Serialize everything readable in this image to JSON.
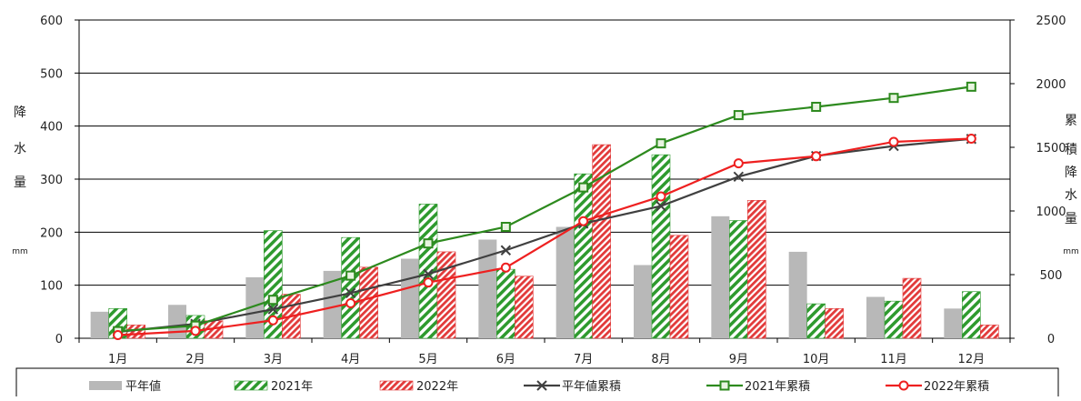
{
  "colors": {
    "avg": "#b8b8b8",
    "y2021": "#2e9a2e",
    "y2022": "#e23a3a",
    "avg_line": "#404040",
    "cum2021": "#2d8a1e",
    "cum2022": "#ee2020"
  },
  "chart_data": {
    "type": "bar",
    "categories": [
      "1月",
      "2月",
      "3月",
      "4月",
      "5月",
      "6月",
      "7月",
      "8月",
      "9月",
      "10月",
      "11月",
      "12月"
    ],
    "y_left": {
      "label_chars": [
        "降",
        "水",
        "量"
      ],
      "unit": "mm",
      "ylim": [
        0,
        600
      ],
      "ticks": [
        "0",
        "100",
        "200",
        "300",
        "400",
        "500",
        "600"
      ]
    },
    "y_right": {
      "label_chars": [
        "累",
        "積",
        "降",
        "水",
        "量"
      ],
      "unit": "mm",
      "ylim": [
        0,
        2500
      ],
      "ticks": [
        "0",
        "500",
        "1000",
        "1500",
        "2000",
        "2500"
      ]
    },
    "grid": true,
    "legend_position": "bottom",
    "bar_series": [
      {
        "name": "平年値",
        "values": [
          50,
          63,
          115,
          127,
          150,
          186,
          210,
          138,
          230,
          163,
          78,
          56
        ]
      },
      {
        "name": "2021年",
        "values": [
          56,
          43,
          203,
          190,
          253,
          130,
          310,
          346,
          222,
          65,
          70,
          88
        ]
      },
      {
        "name": "2022年",
        "values": [
          25,
          33,
          83,
          134,
          163,
          117,
          365,
          194,
          260,
          56,
          113,
          25
        ]
      }
    ],
    "line_series": [
      {
        "name": "平年値累積",
        "values": [
          50,
          113,
          228,
          355,
          505,
          691,
          901,
          1039,
          1269,
          1432,
          1510,
          1566
        ]
      },
      {
        "name": "2021年累積",
        "values": [
          56,
          99,
          302,
          492,
          745,
          875,
          1185,
          1531,
          1753,
          1818,
          1888,
          1976
        ]
      },
      {
        "name": "2022年累積",
        "values": [
          25,
          58,
          141,
          275,
          438,
          555,
          920,
          1114,
          1374,
          1430,
          1543,
          1568
        ]
      }
    ]
  }
}
